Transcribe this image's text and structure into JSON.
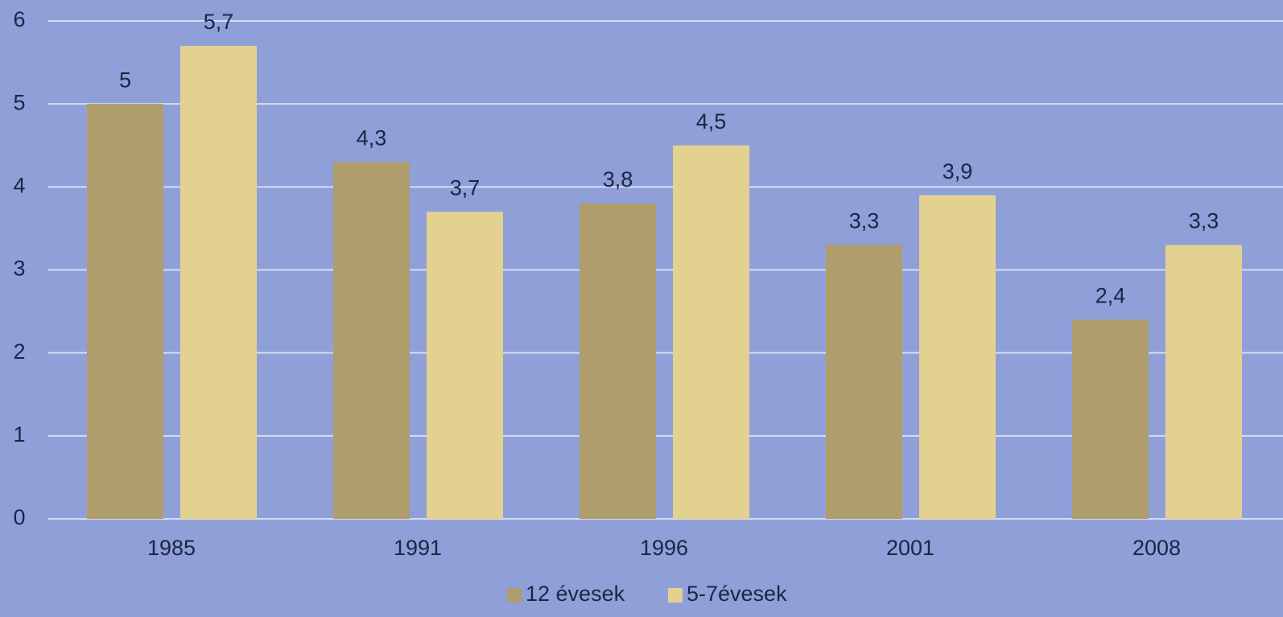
{
  "chart_data": {
    "type": "bar",
    "categories": [
      "1985",
      "1991",
      "1996",
      "2001",
      "2008"
    ],
    "series": [
      {
        "name": "12 évesek",
        "color": "#b09d6c",
        "values": [
          5,
          4.3,
          3.8,
          3.3,
          2.4
        ],
        "value_labels": [
          "5",
          "4,3",
          "3,8",
          "3,3",
          "2,4"
        ]
      },
      {
        "name": "5-7évesek",
        "color": "#e3d18f",
        "values": [
          5.7,
          3.7,
          4.5,
          3.9,
          3.3
        ],
        "value_labels": [
          "5,7",
          "3,7",
          "4,5",
          "3,9",
          "3,3"
        ]
      }
    ],
    "ylim": [
      0,
      6
    ],
    "yticks": [
      0,
      1,
      2,
      3,
      4,
      5,
      6
    ],
    "grid": true,
    "legend": "bottom"
  }
}
